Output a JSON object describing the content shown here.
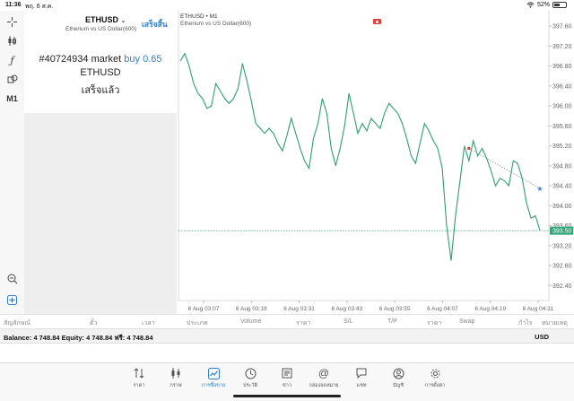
{
  "status_bar": {
    "time": "11:36",
    "date": "พฤ. 6 ส.ค.",
    "battery": "52%",
    "battery_level": 0.52
  },
  "toolbar": {
    "timeframe": "M1"
  },
  "order_panel": {
    "symbol": "ETHUSD",
    "symbol_desc": "Etherium vs US Dollar(600)",
    "done_label": "เสร็จสิ้น",
    "order_id": "#40724934",
    "order_type": "market",
    "side": "buy",
    "volume": "0.65",
    "order_symbol": "ETHUSD",
    "status_text": "เสร็จแล้ว"
  },
  "chart": {
    "symbol_tf": "ETHUSD • M1",
    "desc": "Etherium vs US Dollar(600)",
    "current_price_label": "393.50",
    "accent": "#2fa87a"
  },
  "chart_data": {
    "type": "line",
    "title": "",
    "y_ticks": [
      "397.60",
      "397.20",
      "396.80",
      "396.40",
      "396.00",
      "395.60",
      "395.20",
      "394.80",
      "394.40",
      "394.00",
      "393.60",
      "393.20",
      "392.80",
      "392.40"
    ],
    "y_tick_values": [
      397.6,
      397.2,
      396.8,
      396.4,
      396.0,
      395.6,
      395.2,
      394.8,
      394.4,
      394.0,
      393.6,
      393.2,
      392.8,
      392.4
    ],
    "ylim": [
      392.1,
      397.8
    ],
    "x_labels": [
      "6 Aug 03:07",
      "6 Aug 03:19",
      "6 Aug 03:31",
      "6 Aug 03:43",
      "6 Aug 03:55",
      "6 Aug 04:07",
      "6 Aug 04:19",
      "6 Aug 04:31"
    ],
    "current_price": 393.5,
    "series": [
      {
        "values": [
          396.9,
          397.05,
          396.8,
          396.45,
          396.25,
          396.15,
          395.95,
          396.0,
          396.45,
          396.3,
          396.15,
          396.05,
          396.15,
          396.35,
          396.85,
          396.5,
          396.1,
          395.65,
          395.55,
          395.45,
          395.55,
          395.45,
          395.25,
          395.1,
          395.4,
          395.75,
          395.45,
          395.15,
          394.9,
          394.75,
          395.35,
          395.65,
          396.15,
          395.85,
          395.15,
          394.8,
          395.15,
          395.6,
          396.25,
          395.85,
          395.45,
          395.65,
          395.5,
          395.75,
          395.65,
          395.55,
          395.85,
          396.05,
          395.95,
          395.85,
          395.65,
          395.35,
          395.0,
          394.85,
          395.25,
          395.65,
          395.5,
          395.3,
          395.15,
          394.75,
          393.6,
          392.9,
          393.8,
          394.5,
          395.2,
          394.9,
          395.3,
          395.0,
          395.15,
          394.95,
          394.7,
          394.4,
          394.55,
          394.5,
          394.4,
          394.9,
          394.85,
          394.55,
          394.05,
          393.75,
          393.8,
          393.5
        ]
      }
    ],
    "trendline": {
      "from": {
        "index": 65,
        "value": 395.15
      },
      "to": {
        "index": 81,
        "value": 394.35
      }
    },
    "grid": false
  },
  "positions_header": {
    "cols": [
      "สัญลักษณ์",
      "ตั๋ว",
      "เวลา",
      "ประเภท",
      "Volume",
      "ราคา",
      "S/L",
      "T/P",
      "ราคา",
      "Swap",
      "กำไร",
      "หมายเหตุ"
    ]
  },
  "balance_bar": {
    "text": "Balance: 4 748.84 Equity: 4 748.84 ฟรี: 4 748.84",
    "currency": "USD"
  },
  "tabbar": {
    "tabs": [
      {
        "label": "ราคา",
        "icon": "quotes-icon"
      },
      {
        "label": "กราฟ",
        "icon": "chart-icon"
      },
      {
        "label": "การซื้อขาย",
        "icon": "trade-icon",
        "active": true
      },
      {
        "label": "ประวัติ",
        "icon": "history-icon"
      },
      {
        "label": "ข่าว",
        "icon": "news-icon"
      },
      {
        "label": "กล่องจดหมาย",
        "icon": "mailbox-icon"
      },
      {
        "label": "แชท",
        "icon": "chat-icon"
      },
      {
        "label": "บัญชี",
        "icon": "account-icon"
      },
      {
        "label": "การตั้งค่า",
        "icon": "settings-icon"
      }
    ]
  }
}
